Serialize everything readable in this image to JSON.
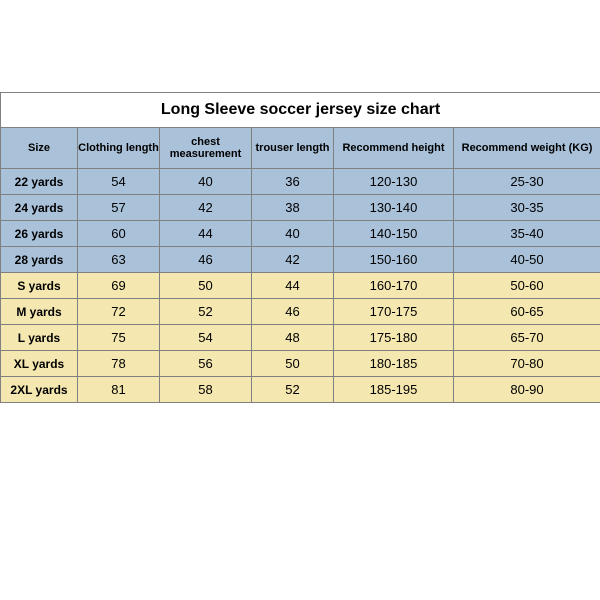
{
  "chart": {
    "title": "Long Sleeve soccer jersey size chart",
    "columns": [
      {
        "key": "size",
        "label": "Size"
      },
      {
        "key": "clen",
        "label": "Clothing length"
      },
      {
        "key": "chest",
        "label": "chest measurement"
      },
      {
        "key": "tlen",
        "label": "trouser length"
      },
      {
        "key": "rheight",
        "label": "Recommend height"
      },
      {
        "key": "rweight",
        "label": "Recommend weight (KG)"
      }
    ],
    "groups": [
      {
        "color": "blue",
        "rows": [
          {
            "size": "22 yards",
            "clen": "54",
            "chest": "40",
            "tlen": "36",
            "rheight": "120-130",
            "rweight": "25-30"
          },
          {
            "size": "24 yards",
            "clen": "57",
            "chest": "42",
            "tlen": "38",
            "rheight": "130-140",
            "rweight": "30-35"
          },
          {
            "size": "26 yards",
            "clen": "60",
            "chest": "44",
            "tlen": "40",
            "rheight": "140-150",
            "rweight": "35-40"
          },
          {
            "size": "28 yards",
            "clen": "63",
            "chest": "46",
            "tlen": "42",
            "rheight": "150-160",
            "rweight": "40-50"
          }
        ]
      },
      {
        "color": "yellow",
        "rows": [
          {
            "size": "S yards",
            "clen": "69",
            "chest": "50",
            "tlen": "44",
            "rheight": "160-170",
            "rweight": "50-60"
          },
          {
            "size": "M yards",
            "clen": "72",
            "chest": "52",
            "tlen": "46",
            "rheight": "170-175",
            "rweight": "60-65"
          },
          {
            "size": "L yards",
            "clen": "75",
            "chest": "54",
            "tlen": "48",
            "rheight": "175-180",
            "rweight": "65-70"
          },
          {
            "size": "XL yards",
            "clen": "78",
            "chest": "56",
            "tlen": "50",
            "rheight": "180-185",
            "rweight": "70-80"
          },
          {
            "size": "2XL yards",
            "clen": "81",
            "chest": "58",
            "tlen": "52",
            "rheight": "185-195",
            "rweight": "80-90"
          }
        ]
      }
    ],
    "colors": {
      "header_bg": "#a9c1d9",
      "blue_bg": "#a9c1d9",
      "yellow_bg": "#f4e7b0",
      "border": "#808080",
      "title_bg": "#ffffff"
    }
  }
}
